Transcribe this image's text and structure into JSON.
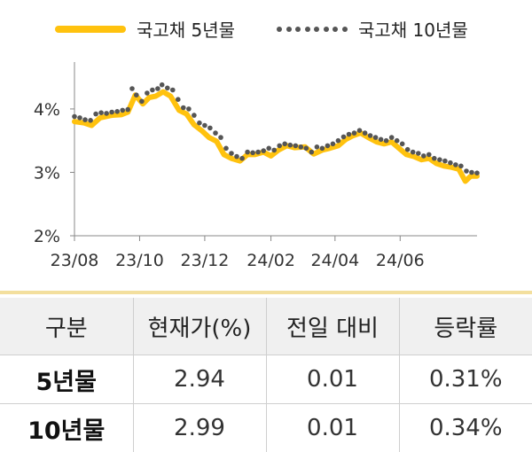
{
  "legend": {
    "series1": "국고채 5년물",
    "series2": "국고채 10년물"
  },
  "chart_data": {
    "type": "line",
    "x_ticks": [
      "23/08",
      "23/10",
      "23/12",
      "24/02",
      "24/04",
      "24/06"
    ],
    "y_ticks": [
      "2%",
      "3%",
      "4%"
    ],
    "ylim": [
      2,
      4.6
    ],
    "x_range": [
      "2023-08-01",
      "2024-08-12"
    ],
    "colors": {
      "5y": "#ffc20e",
      "10y": "#555555"
    },
    "series": [
      {
        "name": "국고채 5년물",
        "style": "line",
        "points": [
          [
            "2023-08-01",
            3.8
          ],
          [
            "2023-08-10",
            3.78
          ],
          [
            "2023-08-17",
            3.74
          ],
          [
            "2023-08-25",
            3.86
          ],
          [
            "2023-09-05",
            3.9
          ],
          [
            "2023-09-14",
            3.91
          ],
          [
            "2023-09-20",
            3.95
          ],
          [
            "2023-09-27",
            4.22
          ],
          [
            "2023-10-04",
            4.08
          ],
          [
            "2023-10-10",
            4.18
          ],
          [
            "2023-10-16",
            4.2
          ],
          [
            "2023-10-23",
            4.27
          ],
          [
            "2023-10-30",
            4.2
          ],
          [
            "2023-11-07",
            3.98
          ],
          [
            "2023-11-14",
            3.92
          ],
          [
            "2023-11-21",
            3.75
          ],
          [
            "2023-11-28",
            3.66
          ],
          [
            "2023-12-05",
            3.55
          ],
          [
            "2023-12-12",
            3.49
          ],
          [
            "2023-12-19",
            3.28
          ],
          [
            "2023-12-26",
            3.22
          ],
          [
            "2024-01-03",
            3.18
          ],
          [
            "2024-01-10",
            3.28
          ],
          [
            "2024-01-17",
            3.28
          ],
          [
            "2024-01-25",
            3.32
          ],
          [
            "2024-02-01",
            3.26
          ],
          [
            "2024-02-08",
            3.35
          ],
          [
            "2024-02-16",
            3.42
          ],
          [
            "2024-02-23",
            3.39
          ],
          [
            "2024-03-04",
            3.4
          ],
          [
            "2024-03-12",
            3.29
          ],
          [
            "2024-03-20",
            3.35
          ],
          [
            "2024-03-27",
            3.38
          ],
          [
            "2024-04-04",
            3.42
          ],
          [
            "2024-04-11",
            3.52
          ],
          [
            "2024-04-18",
            3.58
          ],
          [
            "2024-04-25",
            3.62
          ],
          [
            "2024-05-02",
            3.55
          ],
          [
            "2024-05-10",
            3.48
          ],
          [
            "2024-05-17",
            3.45
          ],
          [
            "2024-05-24",
            3.48
          ],
          [
            "2024-05-31",
            3.38
          ],
          [
            "2024-06-07",
            3.28
          ],
          [
            "2024-06-14",
            3.25
          ],
          [
            "2024-06-21",
            3.2
          ],
          [
            "2024-06-28",
            3.22
          ],
          [
            "2024-07-05",
            3.14
          ],
          [
            "2024-07-12",
            3.1
          ],
          [
            "2024-07-19",
            3.08
          ],
          [
            "2024-07-26",
            3.05
          ],
          [
            "2024-08-01",
            2.86
          ],
          [
            "2024-08-06",
            2.94
          ],
          [
            "2024-08-12",
            2.94
          ]
        ]
      },
      {
        "name": "국고채 10년물",
        "style": "dots",
        "points": [
          [
            "2023-08-01",
            3.88
          ],
          [
            "2023-08-06",
            3.86
          ],
          [
            "2023-08-11",
            3.83
          ],
          [
            "2023-08-16",
            3.82
          ],
          [
            "2023-08-21",
            3.92
          ],
          [
            "2023-08-26",
            3.94
          ],
          [
            "2023-08-31",
            3.93
          ],
          [
            "2023-09-05",
            3.95
          ],
          [
            "2023-09-10",
            3.96
          ],
          [
            "2023-09-15",
            3.98
          ],
          [
            "2023-09-20",
            3.99
          ],
          [
            "2023-09-24",
            4.32
          ],
          [
            "2023-09-28",
            4.22
          ],
          [
            "2023-10-03",
            4.12
          ],
          [
            "2023-10-08",
            4.25
          ],
          [
            "2023-10-13",
            4.3
          ],
          [
            "2023-10-18",
            4.32
          ],
          [
            "2023-10-22",
            4.38
          ],
          [
            "2023-10-27",
            4.33
          ],
          [
            "2023-11-01",
            4.3
          ],
          [
            "2023-11-06",
            4.15
          ],
          [
            "2023-11-11",
            4.02
          ],
          [
            "2023-11-16",
            4.0
          ],
          [
            "2023-11-21",
            3.9
          ],
          [
            "2023-11-26",
            3.78
          ],
          [
            "2023-12-01",
            3.74
          ],
          [
            "2023-12-06",
            3.7
          ],
          [
            "2023-12-11",
            3.62
          ],
          [
            "2023-12-16",
            3.55
          ],
          [
            "2023-12-21",
            3.38
          ],
          [
            "2023-12-26",
            3.3
          ],
          [
            "2023-12-31",
            3.25
          ],
          [
            "2024-01-05",
            3.22
          ],
          [
            "2024-01-10",
            3.32
          ],
          [
            "2024-01-15",
            3.31
          ],
          [
            "2024-01-20",
            3.32
          ],
          [
            "2024-01-25",
            3.34
          ],
          [
            "2024-01-30",
            3.38
          ],
          [
            "2024-02-04",
            3.35
          ],
          [
            "2024-02-09",
            3.42
          ],
          [
            "2024-02-14",
            3.45
          ],
          [
            "2024-02-19",
            3.43
          ],
          [
            "2024-02-24",
            3.42
          ],
          [
            "2024-02-29",
            3.4
          ],
          [
            "2024-03-05",
            3.38
          ],
          [
            "2024-03-10",
            3.32
          ],
          [
            "2024-03-15",
            3.4
          ],
          [
            "2024-03-20",
            3.38
          ],
          [
            "2024-03-25",
            3.42
          ],
          [
            "2024-03-30",
            3.45
          ],
          [
            "2024-04-04",
            3.5
          ],
          [
            "2024-04-09",
            3.56
          ],
          [
            "2024-04-14",
            3.6
          ],
          [
            "2024-04-19",
            3.62
          ],
          [
            "2024-04-24",
            3.66
          ],
          [
            "2024-04-29",
            3.62
          ],
          [
            "2024-05-04",
            3.58
          ],
          [
            "2024-05-09",
            3.55
          ],
          [
            "2024-05-14",
            3.52
          ],
          [
            "2024-05-19",
            3.5
          ],
          [
            "2024-05-24",
            3.55
          ],
          [
            "2024-05-29",
            3.5
          ],
          [
            "2024-06-03",
            3.45
          ],
          [
            "2024-06-08",
            3.36
          ],
          [
            "2024-06-13",
            3.32
          ],
          [
            "2024-06-18",
            3.3
          ],
          [
            "2024-06-23",
            3.26
          ],
          [
            "2024-06-28",
            3.28
          ],
          [
            "2024-07-03",
            3.22
          ],
          [
            "2024-07-08",
            3.2
          ],
          [
            "2024-07-13",
            3.18
          ],
          [
            "2024-07-18",
            3.15
          ],
          [
            "2024-07-23",
            3.12
          ],
          [
            "2024-07-28",
            3.1
          ],
          [
            "2024-08-02",
            3.02
          ],
          [
            "2024-08-07",
            3.0
          ],
          [
            "2024-08-12",
            2.99
          ]
        ]
      }
    ]
  },
  "table": {
    "headers": [
      "구분",
      "현재가(%)",
      "전일 대비",
      "등락률"
    ],
    "rows": [
      [
        "5년물",
        "2.94",
        "0.01",
        "0.31%"
      ],
      [
        "10년물",
        "2.99",
        "0.01",
        "0.34%"
      ]
    ]
  }
}
